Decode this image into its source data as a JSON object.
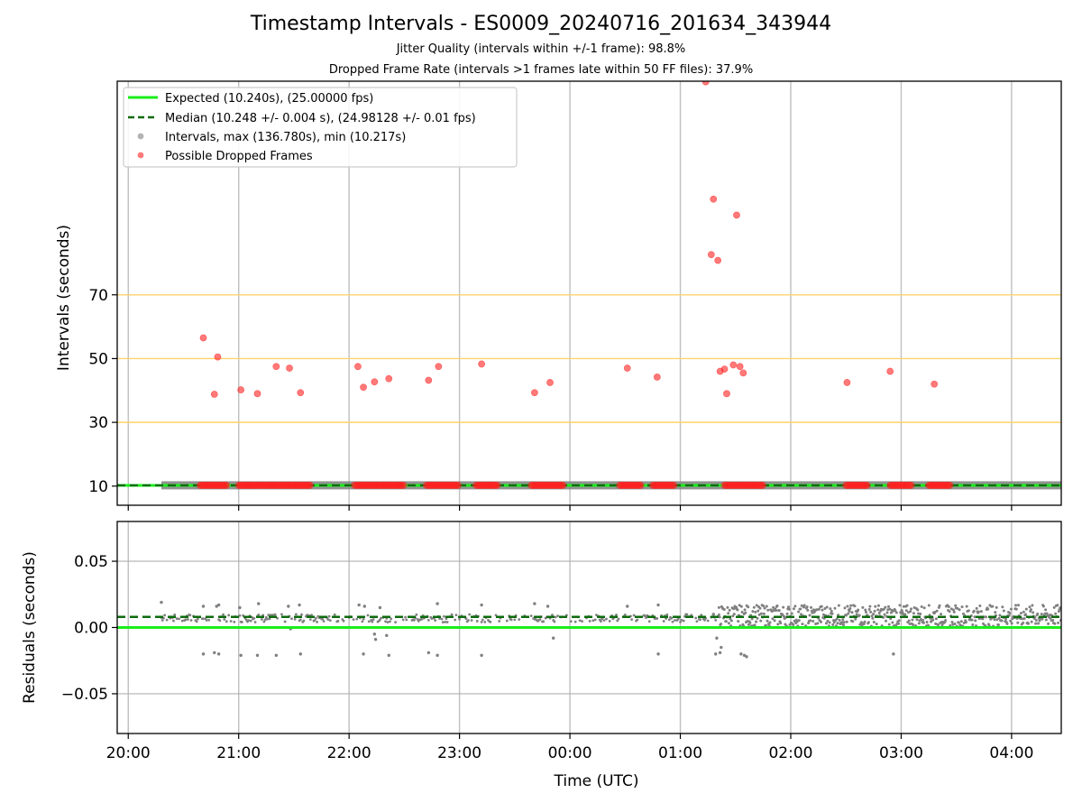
{
  "title": "Timestamp Intervals - ES0009_20240716_201634_343944",
  "subtitle_jitter": "Jitter Quality (intervals within +/-1 frame): 98.8%",
  "subtitle_dropped": "Dropped Frame Rate (intervals >1 frames late within 50 FF files): 37.9%",
  "chart_data": [
    {
      "type": "scatter",
      "xlabel": "",
      "ylabel": "Intervals (seconds)",
      "x_unit": "hours (UTC, past 00:00 of 2024-07-17 negative = 2024-07-16)",
      "xlim": [
        -4.1,
        4.45
      ],
      "ylim": [
        4,
        137
      ],
      "yticks": [
        10,
        30,
        50,
        70
      ],
      "reference_lines": [
        30,
        50,
        70
      ],
      "grid": "vertical",
      "legend_position": "top-left",
      "legend": [
        "Expected (10.240s), (25.00000 fps)",
        "Median (10.248 +/- 0.004 s), (24.98128 +/- 0.01 fps)",
        "Intervals, max (136.780s), min (10.217s)",
        "Possible Dropped Frames"
      ],
      "expected_interval": 10.24,
      "median_interval": 10.248,
      "interval_range": [
        10.217,
        136.78
      ],
      "series": [
        {
          "name": "Possible Dropped Frames",
          "points": [
            [
              -3.32,
              56.5
            ],
            [
              -3.22,
              38.8
            ],
            [
              -3.19,
              50.5
            ],
            [
              -2.98,
              40.2
            ],
            [
              -2.83,
              39.0
            ],
            [
              -2.66,
              47.5
            ],
            [
              -2.54,
              47.0
            ],
            [
              -2.44,
              39.3
            ],
            [
              -1.92,
              47.5
            ],
            [
              -1.87,
              41.0
            ],
            [
              -1.77,
              42.7
            ],
            [
              -1.64,
              43.7
            ],
            [
              -1.28,
              43.2
            ],
            [
              -1.19,
              47.5
            ],
            [
              -0.8,
              48.3
            ],
            [
              -0.32,
              39.3
            ],
            [
              -0.18,
              42.5
            ],
            [
              0.52,
              47.0
            ],
            [
              0.79,
              44.2
            ],
            [
              1.23,
              136.8
            ],
            [
              1.28,
              82.6
            ],
            [
              1.3,
              100.0
            ],
            [
              1.34,
              80.8
            ],
            [
              1.36,
              46.0
            ],
            [
              1.4,
              46.7
            ],
            [
              1.42,
              39.0
            ],
            [
              1.48,
              48.0
            ],
            [
              1.51,
              95.0
            ],
            [
              1.54,
              47.5
            ],
            [
              1.57,
              45.5
            ],
            [
              2.51,
              42.5
            ],
            [
              2.9,
              46.0
            ],
            [
              3.3,
              42.0
            ]
          ],
          "clusters": [
            [
              -3.35,
              -3.1
            ],
            [
              -3.0,
              -2.35
            ],
            [
              -1.95,
              -1.5
            ],
            [
              -1.3,
              -1.0
            ],
            [
              -0.85,
              -0.65
            ],
            [
              -0.35,
              -0.05
            ],
            [
              0.45,
              0.65
            ],
            [
              0.75,
              0.95
            ],
            [
              1.4,
              1.75
            ],
            [
              2.5,
              2.7
            ],
            [
              2.9,
              3.1
            ],
            [
              3.25,
              3.45
            ]
          ],
          "cluster_value": 10.26
        },
        {
          "name": "Intervals",
          "x_range": [
            -3.7,
            4.45
          ],
          "value": 10.25
        }
      ]
    },
    {
      "type": "scatter",
      "xlabel": "Time (UTC)",
      "ylabel": "Residuals (seconds)",
      "xlim": [
        -4.1,
        4.45
      ],
      "ylim": [
        -0.08,
        0.08
      ],
      "yticks": [
        0.05,
        0.0,
        -0.05
      ],
      "ytick_labels": [
        "0.05",
        "0.00",
        "−0.05"
      ],
      "xtick_labels": [
        "20:00",
        "21:00",
        "22:00",
        "23:00",
        "00:00",
        "01:00",
        "02:00",
        "03:00",
        "04:00"
      ],
      "xticks": [
        -4,
        -3,
        -2,
        -1,
        0,
        1,
        2,
        3,
        4
      ],
      "grid": "both",
      "expected_residual": 0.0,
      "median_residual": 0.008,
      "series": [
        {
          "name": "",
          "points": [
            [
              -3.7,
              0.019
            ],
            [
              -3.32,
              0.016
            ],
            [
              -3.2,
              0.016
            ],
            [
              -3.18,
              0.017
            ],
            [
              -2.99,
              0.015
            ],
            [
              -2.82,
              0.018
            ],
            [
              -2.55,
              0.016
            ],
            [
              -2.45,
              0.017
            ],
            [
              -1.91,
              0.017
            ],
            [
              -1.86,
              0.016
            ],
            [
              -1.72,
              0.015
            ],
            [
              -1.2,
              0.018
            ],
            [
              -0.8,
              0.017
            ],
            [
              -0.32,
              0.018
            ],
            [
              -0.2,
              0.016
            ],
            [
              0.52,
              0.016
            ],
            [
              0.8,
              0.017
            ],
            [
              1.3,
              0.01
            ],
            [
              -1.77,
              -0.005
            ],
            [
              -1.76,
              -0.009
            ],
            [
              -1.66,
              -0.006
            ],
            [
              -0.15,
              -0.008
            ],
            [
              -2.53,
              -0.001
            ],
            [
              1.33,
              -0.008
            ],
            [
              1.37,
              -0.015
            ],
            [
              -3.32,
              -0.02
            ],
            [
              -3.22,
              -0.019
            ],
            [
              -3.18,
              -0.02
            ],
            [
              -2.98,
              -0.021
            ],
            [
              -2.83,
              -0.021
            ],
            [
              -2.66,
              -0.021
            ],
            [
              -2.44,
              -0.02
            ],
            [
              -1.87,
              -0.02
            ],
            [
              -1.64,
              -0.021
            ],
            [
              -1.28,
              -0.019
            ],
            [
              -1.2,
              -0.021
            ],
            [
              -0.8,
              -0.021
            ],
            [
              0.8,
              -0.02
            ],
            [
              1.32,
              -0.02
            ],
            [
              1.36,
              -0.019
            ],
            [
              1.55,
              -0.02
            ],
            [
              1.58,
              -0.021
            ],
            [
              1.6,
              -0.022
            ],
            [
              2.93,
              -0.02
            ]
          ],
          "band_early": {
            "x_range": [
              -3.7,
              1.35
            ],
            "low": 0.004,
            "high": 0.01
          },
          "band_late": {
            "x_range": [
              1.35,
              4.45
            ],
            "low": 0.001,
            "high": 0.017
          }
        }
      ]
    }
  ]
}
